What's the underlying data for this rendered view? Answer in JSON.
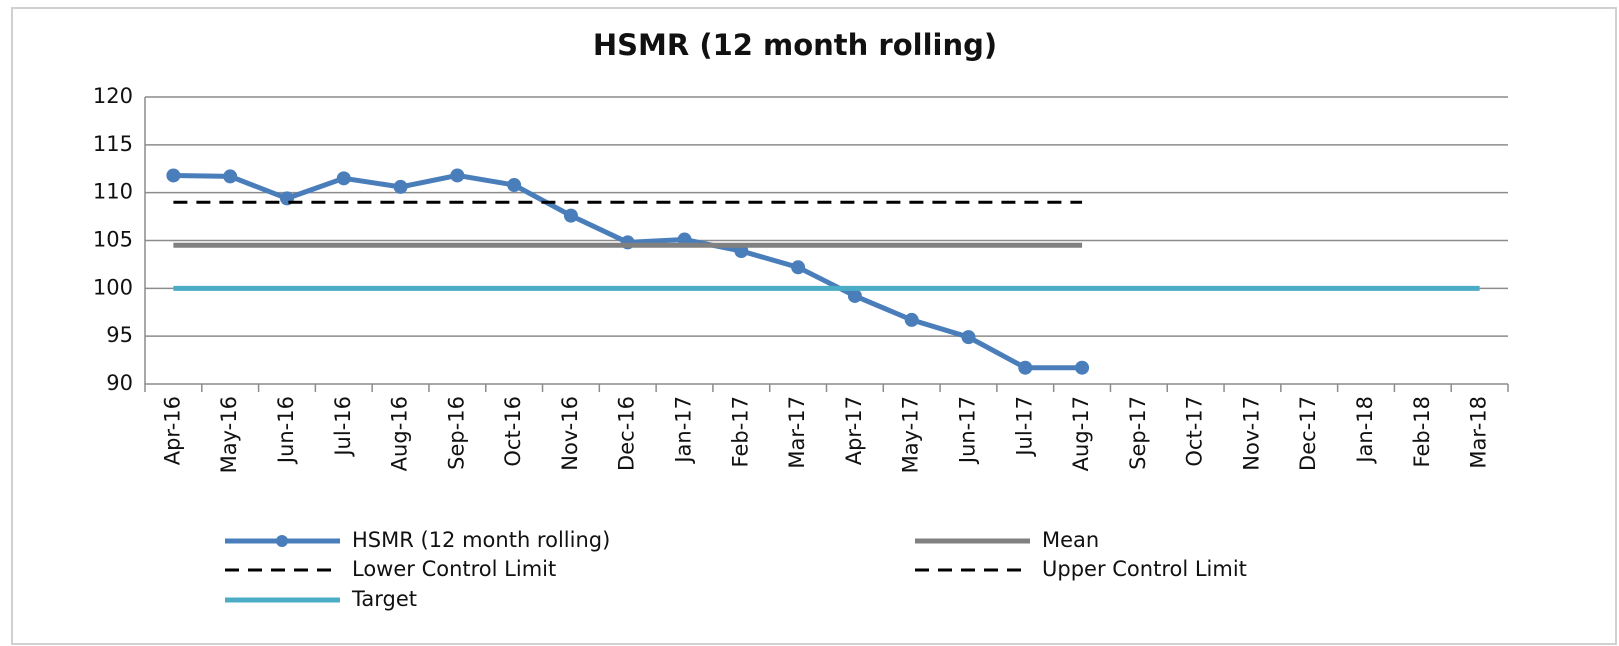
{
  "chart_data": {
    "type": "line",
    "title": "HSMR (12 month rolling)",
    "categories": [
      "Apr-16",
      "May-16",
      "Jun-16",
      "Jul-16",
      "Aug-16",
      "Sep-16",
      "Oct-16",
      "Nov-16",
      "Dec-16",
      "Jan-17",
      "Feb-17",
      "Mar-17",
      "Apr-17",
      "May-17",
      "Jun-17",
      "Jul-17",
      "Aug-17",
      "Sep-17",
      "Oct-17",
      "Nov-17",
      "Dec-17",
      "Jan-18",
      "Feb-18",
      "Mar-18"
    ],
    "series": [
      {
        "name": "HSMR (12 month rolling)",
        "color": "#4a7ebb",
        "marker": true,
        "dash": false,
        "values": [
          111.8,
          111.7,
          109.4,
          111.5,
          110.6,
          111.8,
          110.8,
          107.6,
          104.8,
          105.1,
          103.9,
          102.2,
          99.2,
          96.7,
          94.9,
          91.7,
          91.7,
          null,
          null,
          null,
          null,
          null,
          null,
          null
        ]
      },
      {
        "name": "Mean",
        "color": "#808080",
        "marker": false,
        "dash": false,
        "values": [
          104.5,
          104.5,
          104.5,
          104.5,
          104.5,
          104.5,
          104.5,
          104.5,
          104.5,
          104.5,
          104.5,
          104.5,
          104.5,
          104.5,
          104.5,
          104.5,
          104.5,
          null,
          null,
          null,
          null,
          null,
          null,
          null
        ]
      },
      {
        "name": "Lower Control Limit",
        "color": "#000000",
        "marker": false,
        "dash": true,
        "values": [
          null,
          null,
          null,
          null,
          null,
          null,
          null,
          null,
          null,
          null,
          null,
          null,
          null,
          null,
          null,
          null,
          null,
          null,
          null,
          null,
          null,
          null,
          null,
          null
        ]
      },
      {
        "name": "Upper Control Limit",
        "color": "#000000",
        "marker": false,
        "dash": true,
        "values": [
          109.0,
          109.0,
          109.0,
          109.0,
          109.0,
          109.0,
          109.0,
          109.0,
          109.0,
          109.0,
          109.0,
          109.0,
          109.0,
          109.0,
          109.0,
          109.0,
          109.0,
          null,
          null,
          null,
          null,
          null,
          null,
          null
        ]
      },
      {
        "name": "Target",
        "color": "#4bacc6",
        "marker": false,
        "dash": false,
        "values": [
          100,
          100,
          100,
          100,
          100,
          100,
          100,
          100,
          100,
          100,
          100,
          100,
          100,
          100,
          100,
          100,
          100,
          100,
          100,
          100,
          100,
          100,
          100,
          100
        ]
      }
    ],
    "ylim": [
      90,
      120
    ],
    "yticks": [
      90,
      95,
      100,
      105,
      110,
      115,
      120
    ],
    "grid": true
  }
}
